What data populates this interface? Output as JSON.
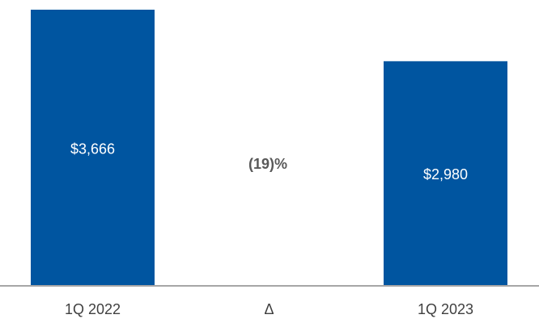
{
  "chart_data": {
    "type": "bar",
    "categories": [
      "1Q 2022",
      "Δ",
      "1Q 2023"
    ],
    "values": [
      3666,
      null,
      2980
    ],
    "value_labels": [
      "$3,666",
      null,
      "$2,980"
    ],
    "annotation": "(19)%",
    "color": "#0055a0"
  }
}
